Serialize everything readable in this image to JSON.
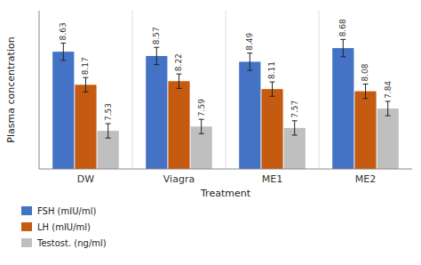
{
  "chart_data": {
    "type": "bar",
    "xlabel": "Treatment",
    "ylabel": "Plasma concentration",
    "categories": [
      "DW",
      "Viagra",
      "ME1",
      "ME2"
    ],
    "series": [
      {
        "name": "FSH (mIU/ml)",
        "color": "#4472C4",
        "values": [
          8.63,
          8.57,
          8.49,
          8.68
        ],
        "errors": [
          0.12,
          0.12,
          0.12,
          0.12
        ]
      },
      {
        "name": "LH (mIU/ml)",
        "color": "#C55A11",
        "values": [
          8.17,
          8.22,
          8.11,
          8.08
        ],
        "errors": [
          0.1,
          0.1,
          0.1,
          0.1
        ]
      },
      {
        "name": "Testost. (ng/ml)",
        "color": "#BFBFBF",
        "values": [
          7.53,
          7.59,
          7.57,
          7.84
        ],
        "errors": [
          0.1,
          0.1,
          0.1,
          0.1
        ]
      }
    ],
    "ylim": [
      7.0,
      9.2
    ],
    "yticks": [],
    "data_labels": true,
    "tick_labels": "x",
    "legend": "bottom"
  }
}
